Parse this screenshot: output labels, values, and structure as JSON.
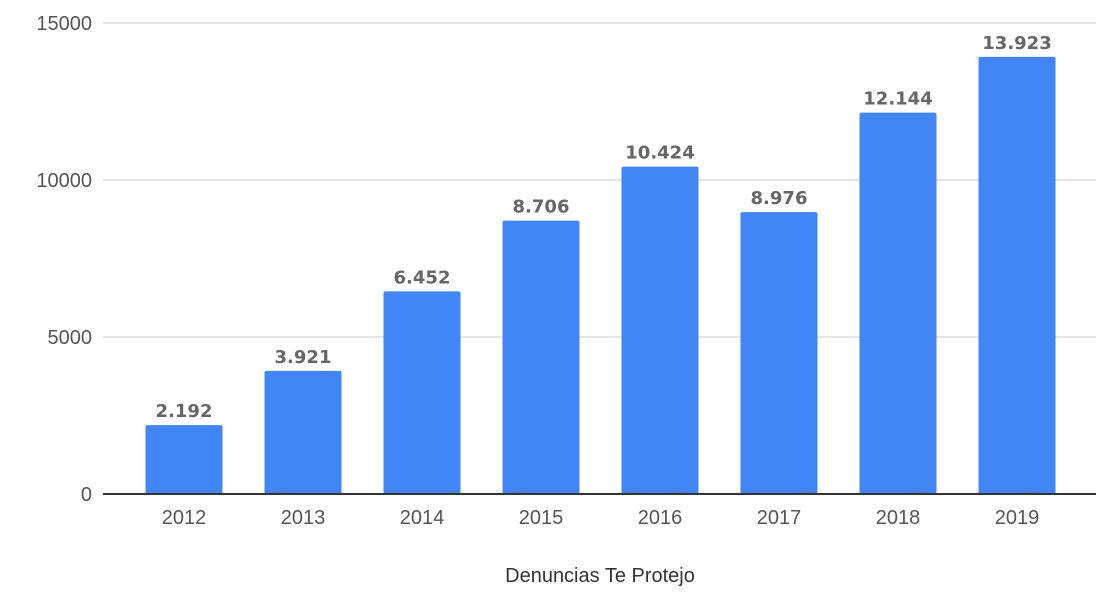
{
  "chart_data": {
    "type": "bar",
    "categories": [
      "2012",
      "2013",
      "2014",
      "2015",
      "2016",
      "2017",
      "2018",
      "2019"
    ],
    "values": [
      2192,
      3921,
      6452,
      8706,
      10424,
      8976,
      12144,
      13923
    ],
    "value_labels": [
      "2.192",
      "3.921",
      "6.452",
      "8.706",
      "10.424",
      "8.976",
      "12.144",
      "13.923"
    ],
    "xlabel": "Denuncias Te Protejo",
    "ylabel": "",
    "ylim": [
      0,
      15000
    ],
    "yticks": [
      "0",
      "5000",
      "10000",
      "15000"
    ],
    "ytick_values": [
      0,
      5000,
      10000,
      15000
    ],
    "grid": true,
    "legend": "none",
    "colors": {
      "bar": "#4285f4",
      "grid": "#dddddd",
      "axis": "#333333"
    }
  }
}
